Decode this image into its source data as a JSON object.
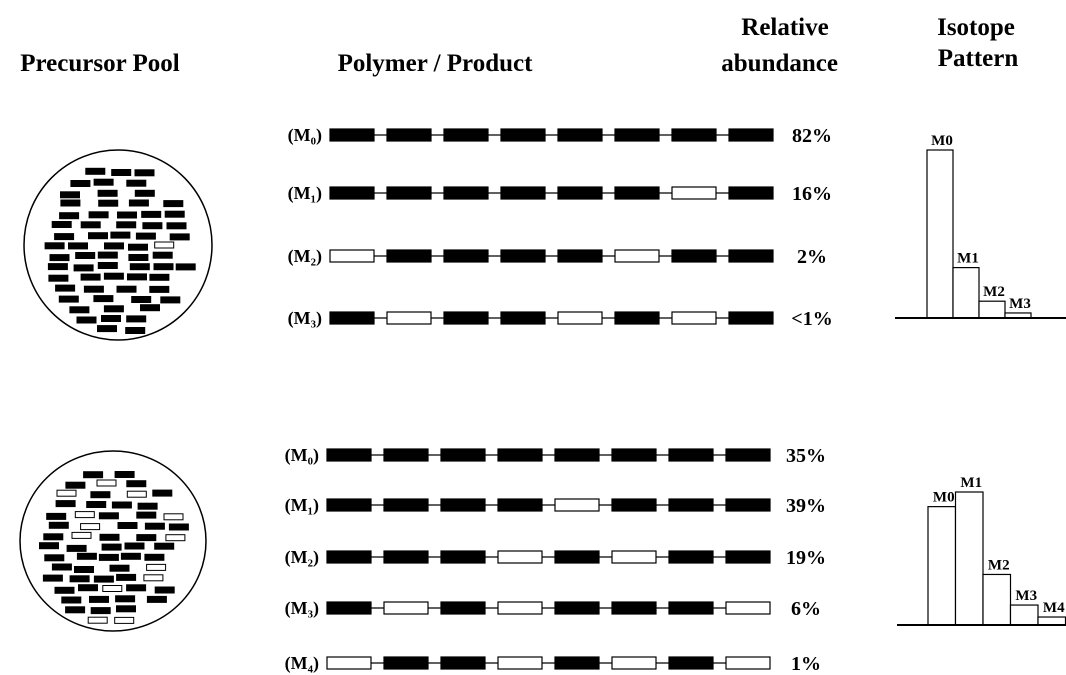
{
  "headers": {
    "precursor_pool": "Precursor Pool",
    "polymer_product": "Polymer / Product",
    "relative_abundance": [
      "Relative",
      "abundance"
    ],
    "isotope_pattern": [
      "Isotope",
      "Pattern"
    ]
  },
  "panels": [
    {
      "rows": [
        {
          "label": "(M₀)",
          "abundance": "82%"
        },
        {
          "label": "(M₁)",
          "abundance": "16%"
        },
        {
          "label": "(M₂)",
          "abundance": "2%"
        },
        {
          "label": "(M₃)",
          "abundance": "<1%"
        }
      ],
      "isotope_pattern": [
        {
          "label": "M0",
          "value": 100
        },
        {
          "label": "M1",
          "value": 30
        },
        {
          "label": "M2",
          "value": 10
        },
        {
          "label": "M3",
          "value": 3
        }
      ]
    },
    {
      "rows": [
        {
          "label": "(M₀)",
          "abundance": "35%"
        },
        {
          "label": "(M₁)",
          "abundance": "39%"
        },
        {
          "label": "(M₂)",
          "abundance": "19%"
        },
        {
          "label": "(M₃)",
          "abundance": "6%"
        },
        {
          "label": "(M₄)",
          "abundance": "1%"
        }
      ],
      "isotope_pattern": [
        {
          "label": "M0",
          "value": 89
        },
        {
          "label": "M1",
          "value": 100
        },
        {
          "label": "M2",
          "value": 38
        },
        {
          "label": "M3",
          "value": 15
        },
        {
          "label": "M4",
          "value": 6
        }
      ]
    }
  ]
}
